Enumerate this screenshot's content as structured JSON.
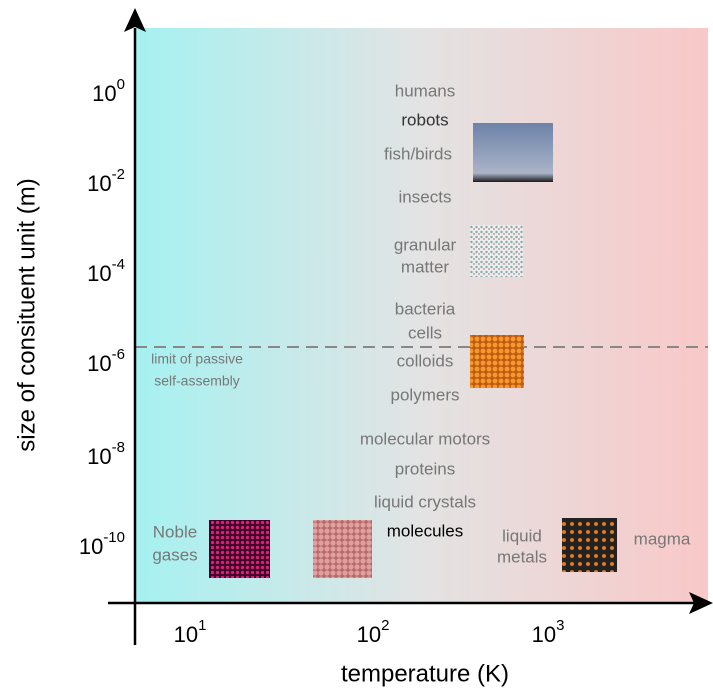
{
  "axes": {
    "y": {
      "label": "size of consituent unit (m)",
      "ticks": [
        {
          "base": "10",
          "exp": "0"
        },
        {
          "base": "10",
          "exp": "-2"
        },
        {
          "base": "10",
          "exp": "-4"
        },
        {
          "base": "10",
          "exp": "-6"
        },
        {
          "base": "10",
          "exp": "-8"
        },
        {
          "base": "10",
          "exp": "-10"
        }
      ]
    },
    "x": {
      "label": "temperature (K)",
      "ticks": [
        {
          "base": "10",
          "exp": "1"
        },
        {
          "base": "10",
          "exp": "2"
        },
        {
          "base": "10",
          "exp": "3"
        }
      ]
    }
  },
  "limit_line": {
    "label": [
      "limit of passive",
      "self-assembly"
    ]
  },
  "labels": [
    "humans",
    "robots",
    "fish/birds",
    "insects",
    "granular",
    "matter",
    "bacteria",
    "cells",
    "colloids",
    "polymers",
    "molecular motors",
    "proteins",
    "liquid crystals",
    "molecules",
    "Noble",
    "gases",
    "liquid",
    "metals",
    "magma"
  ]
}
